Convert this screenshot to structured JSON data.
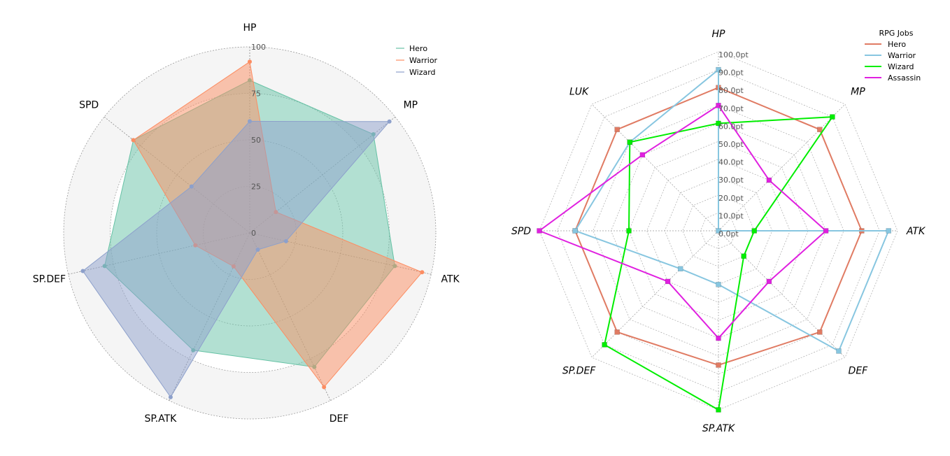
{
  "chart_data": [
    {
      "type": "radar",
      "axes": [
        "HP",
        "MP",
        "ATK",
        "DEF",
        "SP.ATK",
        "SP.DEF",
        "SPD"
      ],
      "rlim": [
        0,
        100
      ],
      "rticks": [
        0,
        25,
        50,
        75,
        100
      ],
      "rtick_labels": [
        "0",
        "25",
        "50",
        "75",
        "100"
      ],
      "series": [
        {
          "name": "Hero",
          "color": "#66c2a5",
          "values": [
            82,
            85,
            80,
            80,
            70,
            80,
            80
          ]
        },
        {
          "name": "Warrior",
          "color": "#fc8d62",
          "values": [
            92,
            18,
            95,
            92,
            20,
            30,
            80
          ]
        },
        {
          "name": "Wizard",
          "color": "#8da0cb",
          "values": [
            60,
            96,
            20,
            10,
            98,
            92,
            40
          ]
        }
      ],
      "legend": {
        "position": "top-right",
        "title": ""
      },
      "grid_style": "dotted",
      "background": "#f5f5f5"
    },
    {
      "type": "radar",
      "axes": [
        "HP",
        "MP",
        "ATK",
        "DEF",
        "SP.ATK",
        "SP.DEF",
        "SPD",
        "LUK"
      ],
      "rlim": [
        0,
        100
      ],
      "rticks": [
        0,
        10,
        20,
        30,
        40,
        50,
        60,
        70,
        80,
        90,
        100
      ],
      "rtick_labels": [
        "0.0pt",
        "10.0pt",
        "20.0pt",
        "30.0pt",
        "40.0pt",
        "50.0pt",
        "60.0pt",
        "70.0pt",
        "80.0pt",
        "90.0pt",
        "100.0pt"
      ],
      "series": [
        {
          "name": "Hero",
          "color": "#e07b63",
          "marker": "square",
          "values": [
            80,
            80,
            80,
            80,
            75,
            80,
            80,
            80
          ]
        },
        {
          "name": "Warrior",
          "color": "#87c6e0",
          "marker": "square",
          "values": [
            90,
            0,
            95,
            95,
            30,
            30,
            80,
            70
          ]
        },
        {
          "name": "Wizard",
          "color": "#00ee00",
          "marker": "square",
          "values": [
            60,
            90,
            20,
            20,
            100,
            90,
            50,
            70
          ]
        },
        {
          "name": "Assassin",
          "color": "#e020e0",
          "marker": "square",
          "values": [
            70,
            40,
            60,
            40,
            60,
            40,
            100,
            60
          ]
        }
      ],
      "legend": {
        "position": "top-right",
        "title": "RPG Jobs"
      },
      "grid_shape": "polygon",
      "label_style": "italic"
    }
  ]
}
